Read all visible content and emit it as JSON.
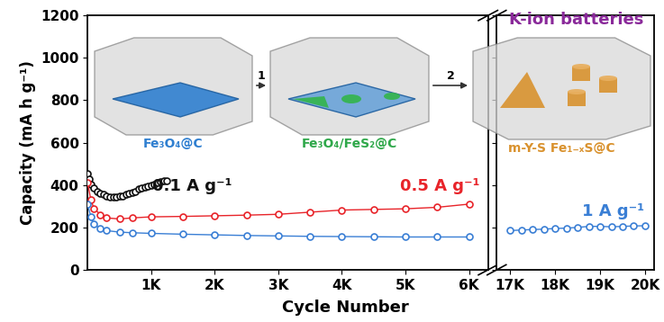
{
  "chart_data": [
    {
      "type": "line",
      "y_label": "Capacity (mA h g⁻¹)",
      "x_label": "Cycle Number",
      "annotations": [
        "K-ion batteries"
      ],
      "xlim": [
        0,
        6300
      ],
      "xticks": [
        {
          "value": 1000,
          "label": "1K"
        },
        {
          "value": 2000,
          "label": "2K"
        },
        {
          "value": 3000,
          "label": "3K"
        },
        {
          "value": 4000,
          "label": "4K"
        },
        {
          "value": 5000,
          "label": "5K"
        },
        {
          "value": 6000,
          "label": "6K"
        }
      ],
      "ylim": [
        0,
        1200
      ],
      "yticks": [
        0,
        200,
        400,
        600,
        800,
        1000,
        1200
      ],
      "marker": "o",
      "line_style": "solid",
      "series": [
        {
          "name": "0.1 A g⁻¹",
          "color": "#111111",
          "x": [
            0,
            20,
            50,
            100,
            150,
            200,
            250,
            300,
            350,
            400,
            450,
            500,
            550,
            600,
            650,
            700,
            750,
            800,
            850,
            900,
            950,
            1000,
            1050,
            1100,
            1150,
            1200,
            1250
          ],
          "values": [
            455,
            430,
            405,
            385,
            370,
            360,
            355,
            350,
            345,
            345,
            345,
            350,
            350,
            355,
            360,
            365,
            370,
            380,
            385,
            390,
            395,
            400,
            405,
            410,
            415,
            418,
            420
          ]
        },
        {
          "name": "0.5 A g⁻¹",
          "color": "#e8242a",
          "x": [
            0,
            50,
            100,
            200,
            300,
            500,
            700,
            1000,
            1500,
            2000,
            2500,
            3000,
            3500,
            4000,
            4500,
            5000,
            5500,
            6000
          ],
          "values": [
            410,
            330,
            290,
            260,
            245,
            240,
            245,
            250,
            252,
            255,
            258,
            262,
            272,
            282,
            285,
            288,
            295,
            310
          ]
        },
        {
          "color": "#3a7fd5",
          "x": [
            0,
            50,
            100,
            200,
            300,
            500,
            700,
            1000,
            1500,
            2000,
            2500,
            3000,
            3500,
            4000,
            4500,
            5000,
            5500,
            6000
          ],
          "values": [
            310,
            250,
            215,
            195,
            185,
            178,
            175,
            172,
            168,
            165,
            162,
            160,
            158,
            157,
            156,
            155,
            155,
            155
          ]
        }
      ]
    },
    {
      "type": "line",
      "tick_labels": "x",
      "xlim": [
        16700,
        20200
      ],
      "xticks": [
        {
          "value": 17000,
          "label": "17K"
        },
        {
          "value": 18000,
          "label": "18K"
        },
        {
          "value": 19000,
          "label": "19K"
        },
        {
          "value": 20000,
          "label": "20K"
        }
      ],
      "ylim": [
        0,
        1200
      ],
      "yticks": [
        0,
        200,
        400,
        600,
        800,
        1000,
        1200
      ],
      "marker": "o",
      "line_style": "solid",
      "series": [
        {
          "name": "1 A g⁻¹",
          "color": "#3a7fd5",
          "x": [
            17000,
            17250,
            17500,
            17750,
            18000,
            18250,
            18500,
            18750,
            19000,
            19250,
            19500,
            19750,
            20000
          ],
          "values": [
            185,
            188,
            190,
            192,
            195,
            197,
            200,
            205,
            205,
            203,
            205,
            207,
            208
          ]
        }
      ]
    }
  ],
  "inset": {
    "stages": [
      "Fe₃O₄@C",
      "Fe₃O₄/FeS₂@C",
      "m-Y-S Fe₁₋ₓS@C"
    ],
    "steps": [
      "1",
      "2"
    ]
  }
}
